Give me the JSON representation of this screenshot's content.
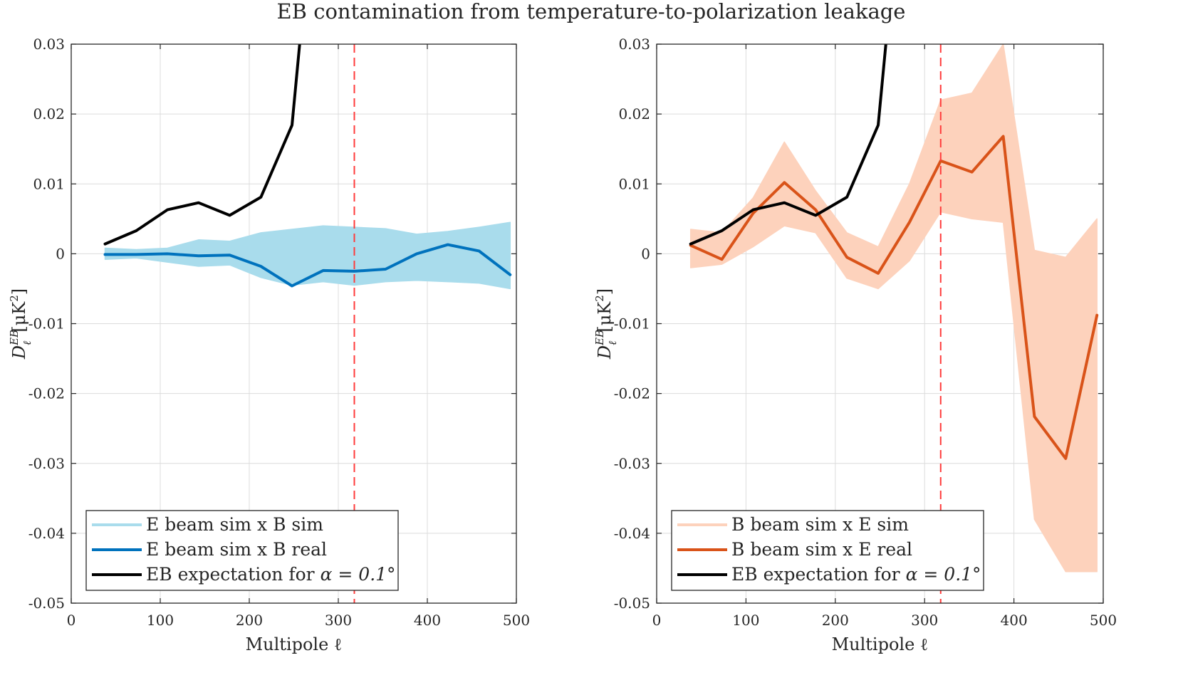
{
  "figure": {
    "title": "EB contamination from temperature-to-polarization leakage"
  },
  "chart_data": [
    {
      "type": "line",
      "xlabel": "Multipole ℓ",
      "ylabel": "D_ℓ^{EB} [μK²]",
      "ylabel_parts": {
        "base": "D",
        "sup": "EB",
        "sub": "ℓ",
        "unit": "[μK",
        "unit_sup": "2",
        "unit_close": "]"
      },
      "xlim": [
        0,
        500
      ],
      "ylim": [
        -0.05,
        0.03
      ],
      "x_ticks": [
        0,
        100,
        200,
        300,
        400,
        500
      ],
      "x_tick_labels": [
        "0",
        "100",
        "200",
        "300",
        "400",
        "500"
      ],
      "y_ticks": [
        -0.05,
        -0.04,
        -0.03,
        -0.02,
        -0.01,
        0,
        0.01,
        0.02,
        0.03
      ],
      "y_tick_labels": [
        "-0.05",
        "-0.04",
        "-0.03",
        "-0.02",
        "-0.01",
        "0",
        "0.01",
        "0.02",
        "0.03"
      ],
      "grid": true,
      "legend_position": "bottom-left",
      "vline": {
        "x": 318,
        "color": "#ff3b3b",
        "style": "dashed"
      },
      "x": [
        38,
        73,
        108,
        143,
        178,
        213,
        248,
        283,
        318,
        353,
        388,
        423,
        458,
        493
      ],
      "band": {
        "legend": "E beam sim x B sim",
        "color": "#a9dcec",
        "lower": [
          -0.0008,
          -0.0006,
          -0.0012,
          -0.0018,
          -0.0016,
          -0.0034,
          -0.0045,
          -0.004,
          -0.0045,
          -0.004,
          -0.0038,
          -0.004,
          -0.0042,
          -0.005
        ],
        "upper": [
          0.0008,
          0.0006,
          0.0008,
          0.002,
          0.0018,
          0.003,
          0.0035,
          0.004,
          0.0038,
          0.0036,
          0.0028,
          0.0032,
          0.0038,
          0.0045
        ]
      },
      "series": [
        {
          "name": "E beam sim x B real",
          "color": "#0072bd",
          "width": 4,
          "x": [
            38,
            73,
            108,
            143,
            178,
            213,
            248,
            283,
            318,
            353,
            388,
            423,
            458,
            493
          ],
          "values": [
            -0.0001,
            -0.0001,
            0.0,
            -0.0003,
            -0.0002,
            -0.0018,
            -0.0046,
            -0.0024,
            -0.0025,
            -0.0022,
            0.0,
            0.0013,
            0.0004,
            -0.003
          ]
        },
        {
          "name": "EB expectation for α = 0.1°",
          "color": "#000000",
          "width": 4,
          "x": [
            38,
            73,
            108,
            143,
            178,
            213,
            248,
            264
          ],
          "values": [
            0.0014,
            0.0033,
            0.0063,
            0.0073,
            0.0055,
            0.0081,
            0.0184,
            0.04
          ]
        }
      ],
      "legend": [
        {
          "label": "E beam sim x B sim",
          "color": "#a9dcec"
        },
        {
          "label": "E beam sim x B real",
          "color": "#0072bd"
        },
        {
          "label_prefix": "EB expectation for ",
          "label_math": "α = 0.1°",
          "color": "#000000"
        }
      ]
    },
    {
      "type": "line",
      "xlabel": "Multipole ℓ",
      "ylabel": "D_ℓ^{EB} [μK²]",
      "ylabel_parts": {
        "base": "D",
        "sup": "EB",
        "sub": "ℓ",
        "unit": "[μK",
        "unit_sup": "2",
        "unit_close": "]"
      },
      "xlim": [
        0,
        500
      ],
      "ylim": [
        -0.05,
        0.03
      ],
      "x_ticks": [
        0,
        100,
        200,
        300,
        400,
        500
      ],
      "x_tick_labels": [
        "0",
        "100",
        "200",
        "300",
        "400",
        "500"
      ],
      "y_ticks": [
        -0.05,
        -0.04,
        -0.03,
        -0.02,
        -0.01,
        0,
        0.01,
        0.02,
        0.03
      ],
      "y_tick_labels": [
        "-0.05",
        "-0.04",
        "-0.03",
        "-0.02",
        "-0.01",
        "0",
        "0.01",
        "0.02",
        "0.03"
      ],
      "grid": true,
      "legend_position": "bottom-left",
      "vline": {
        "x": 318,
        "color": "#ff3b3b",
        "style": "dashed"
      },
      "x": [
        38,
        73,
        108,
        143,
        178,
        213,
        248,
        283,
        318,
        353,
        388,
        423,
        458,
        493
      ],
      "band": {
        "legend": "B beam sim x E sim",
        "color": "#fdd2bc",
        "lower": [
          -0.002,
          -0.0015,
          0.001,
          0.004,
          0.003,
          -0.0035,
          -0.005,
          -0.001,
          0.006,
          0.005,
          0.0045,
          -0.038,
          -0.0455,
          -0.0455
        ],
        "upper": [
          0.0035,
          0.003,
          0.008,
          0.016,
          0.009,
          0.003,
          0.001,
          0.01,
          0.022,
          0.023,
          0.03,
          0.0005,
          -0.0005,
          0.005
        ]
      },
      "series": [
        {
          "name": "B beam sim x E real",
          "color": "#d95319",
          "width": 4,
          "x": [
            38,
            73,
            108,
            143,
            178,
            213,
            248,
            283,
            318,
            353,
            388,
            423,
            458,
            493
          ],
          "values": [
            0.0012,
            -0.0008,
            0.0058,
            0.0102,
            0.0063,
            -0.0005,
            -0.0028,
            0.0045,
            0.0133,
            0.0117,
            0.0168,
            -0.0233,
            -0.0293,
            -0.0088
          ]
        },
        {
          "name": "EB expectation for α = 0.1°",
          "color": "#000000",
          "width": 4,
          "x": [
            38,
            73,
            108,
            143,
            178,
            213,
            248,
            264
          ],
          "values": [
            0.0014,
            0.0033,
            0.0063,
            0.0073,
            0.0055,
            0.0081,
            0.0184,
            0.04
          ]
        }
      ],
      "legend": [
        {
          "label": "B beam sim x E sim",
          "color": "#fdd2bc"
        },
        {
          "label": "B beam sim x E real",
          "color": "#d95319"
        },
        {
          "label_prefix": "EB expectation for ",
          "label_math": "α = 0.1°",
          "color": "#000000"
        }
      ]
    }
  ]
}
